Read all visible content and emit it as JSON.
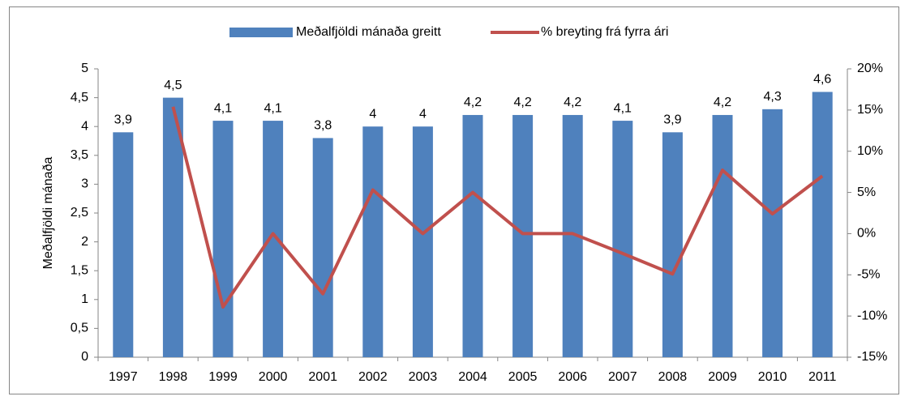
{
  "chart_data": {
    "type": "bar-line",
    "y_label": "Meðalfjöldi mánaða",
    "categories": [
      "1997",
      "1998",
      "1999",
      "2000",
      "2001",
      "2002",
      "2003",
      "2004",
      "2005",
      "2006",
      "2007",
      "2008",
      "2009",
      "2010",
      "2011"
    ],
    "series": [
      {
        "name": "Meðalfjöldi mánaða greitt",
        "type": "bar",
        "color": "#4f81bd",
        "values": [
          3.9,
          4.5,
          4.1,
          4.1,
          3.8,
          4,
          4,
          4.2,
          4.2,
          4.2,
          4.1,
          3.9,
          4.2,
          4.3,
          4.6
        ],
        "value_labels": [
          "3,9",
          "4,5",
          "4,1",
          "4,1",
          "3,8",
          "4",
          "4",
          "4,2",
          "4,2",
          "4,2",
          "4,1",
          "3,9",
          "4,2",
          "4,3",
          "4,6"
        ]
      },
      {
        "name": "% breyting frá fyrra ári",
        "type": "line",
        "color": "#c0504d",
        "axis": "y2",
        "values": [
          null,
          15.4,
          -8.9,
          0,
          -7.3,
          5.3,
          0,
          5,
          0,
          0,
          -2.4,
          -4.9,
          7.7,
          2.4,
          7
        ]
      }
    ],
    "ylim": [
      0,
      5
    ],
    "yticks": [
      0,
      {
        "value": 0.5,
        "label": "0,5"
      },
      1,
      {
        "value": 1.5,
        "label": "1,5"
      },
      2,
      {
        "value": 2.5,
        "label": "2,5"
      },
      3,
      {
        "value": 3.5,
        "label": "3,5"
      },
      4,
      {
        "value": 4.5,
        "label": "4,5"
      },
      5
    ],
    "y2lim": [
      -15,
      20
    ],
    "y2ticks": [
      {
        "value": -15,
        "label": "-15%"
      },
      {
        "value": -10,
        "label": "-10%"
      },
      {
        "value": -5,
        "label": "-5%"
      },
      {
        "value": 0,
        "label": "0%"
      },
      {
        "value": 5,
        "label": "5%"
      },
      {
        "value": 10,
        "label": "10%"
      },
      {
        "value": 15,
        "label": "15%"
      },
      {
        "value": 20,
        "label": "20%"
      }
    ],
    "legend": "top"
  }
}
